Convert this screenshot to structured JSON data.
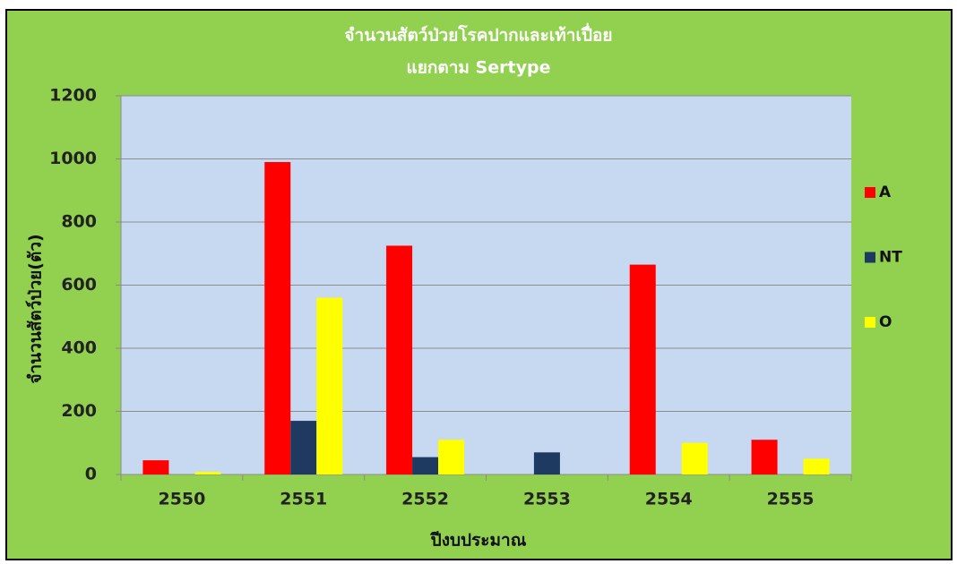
{
  "chart_data": {
    "type": "bar",
    "title": "จำนวนสัตว์ป่วยโรคปากและเท้าเปื่อย",
    "subtitle": "แยกตาม Sertype",
    "x_label": "ปีงบประมาณ",
    "y_label": "จำนวนสัตว์ป่วย(ตัว)",
    "categories": [
      "2550",
      "2551",
      "2552",
      "2553",
      "2554",
      "2555"
    ],
    "series": [
      {
        "name": "A",
        "color": "#ff0000",
        "values": [
          45,
          990,
          725,
          0,
          665,
          110
        ]
      },
      {
        "name": "NT",
        "color": "#1f3a60",
        "values": [
          0,
          170,
          55,
          70,
          0,
          0
        ]
      },
      {
        "name": "O",
        "color": "#ffff00",
        "values": [
          8,
          560,
          110,
          0,
          100,
          50
        ]
      }
    ],
    "ylim": [
      0,
      1200
    ],
    "yticks": [
      0,
      200,
      400,
      600,
      800,
      1000,
      1200
    ],
    "grid": true,
    "legend": "right"
  }
}
